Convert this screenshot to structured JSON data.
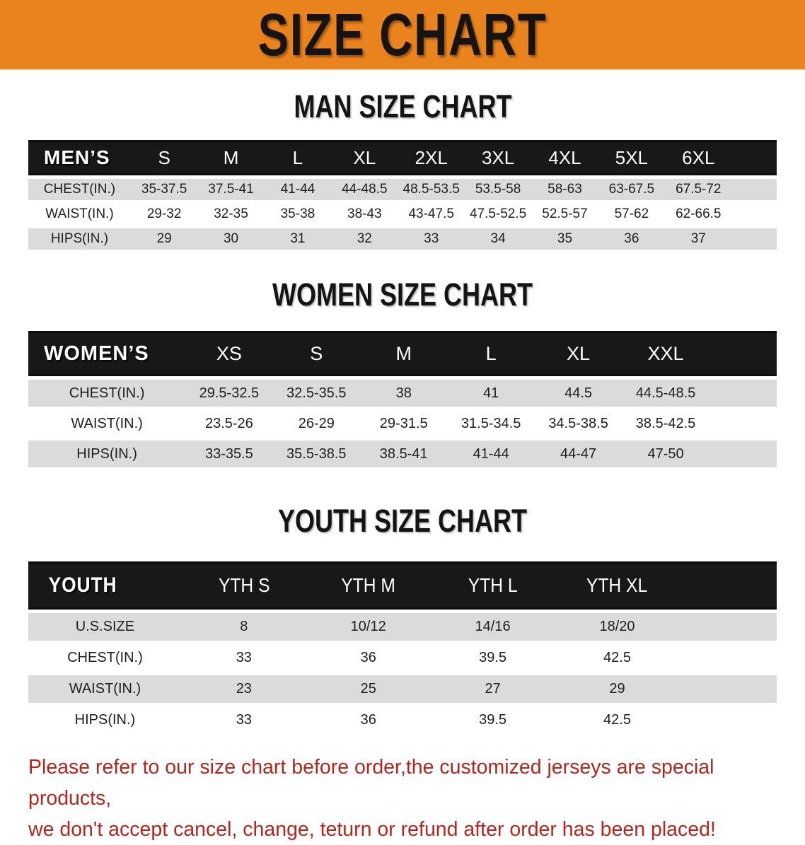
{
  "banner": {
    "title": "SIZE CHART",
    "bg_color": "#E8831E"
  },
  "colors": {
    "table_header_bg": "#181818",
    "table_row_gray": "#dbdbdb",
    "footer_text": "#B3271E"
  },
  "sections": {
    "men": {
      "title": "MAN SIZE CHART",
      "table": {
        "corner": "MEN’S",
        "sizes": [
          "S",
          "M",
          "L",
          "XL",
          "2XL",
          "3XL",
          "4XL",
          "5XL",
          "6XL"
        ],
        "rows": [
          {
            "label": "CHEST(IN.)",
            "values": [
              "35-37.5",
              "37.5-41",
              "41-44",
              "44-48.5",
              "48.5-53.5",
              "53.5-58",
              "58-63",
              "63-67.5",
              "67.5-72"
            ]
          },
          {
            "label": "WAIST(IN.)",
            "values": [
              "29-32",
              "32-35",
              "35-38",
              "38-43",
              "43-47.5",
              "47.5-52.5",
              "52.5-57",
              "57-62",
              "62-66.5"
            ]
          },
          {
            "label": "HIPS(IN.)",
            "values": [
              "29",
              "30",
              "31",
              "32",
              "33",
              "34",
              "35",
              "36",
              "37"
            ]
          }
        ]
      }
    },
    "women": {
      "title": "WOMEN SIZE CHART",
      "table": {
        "corner": "WOMEN’S",
        "sizes": [
          "XS",
          "S",
          "M",
          "L",
          "XL",
          "XXL"
        ],
        "rows": [
          {
            "label": "CHEST(IN.)",
            "values": [
              "29.5-32.5",
              "32.5-35.5",
              "38",
              "41",
              "44.5",
              "44.5-48.5"
            ]
          },
          {
            "label": "WAIST(IN.)",
            "values": [
              "23.5-26",
              "26-29",
              "29-31.5",
              "31.5-34.5",
              "34.5-38.5",
              "38.5-42.5"
            ]
          },
          {
            "label": "HIPS(IN.)",
            "values": [
              "33-35.5",
              "35.5-38.5",
              "38.5-41",
              "41-44",
              "44-47",
              "47-50"
            ]
          }
        ]
      }
    },
    "youth": {
      "title": "YOUTH SIZE CHART",
      "table": {
        "corner": "YOUTH",
        "sizes": [
          "YTH S",
          "YTH M",
          "YTH L",
          "YTH XL"
        ],
        "rows": [
          {
            "label": "U.S.SIZE",
            "values": [
              "8",
              "10/12",
              "14/16",
              "18/20"
            ]
          },
          {
            "label": "CHEST(IN.)",
            "values": [
              "33",
              "36",
              "39.5",
              "42.5"
            ]
          },
          {
            "label": "WAIST(IN.)",
            "values": [
              "23",
              "25",
              "27",
              "29"
            ]
          },
          {
            "label": "HIPS(IN.)",
            "values": [
              "33",
              "36",
              "39.5",
              "42.5"
            ]
          }
        ]
      }
    }
  },
  "footer": {
    "line1": "Please refer to our size chart before order,the customized jerseys are special products,",
    "line2": "we don't accept cancel, change, teturn or refund after order has been placed!"
  }
}
